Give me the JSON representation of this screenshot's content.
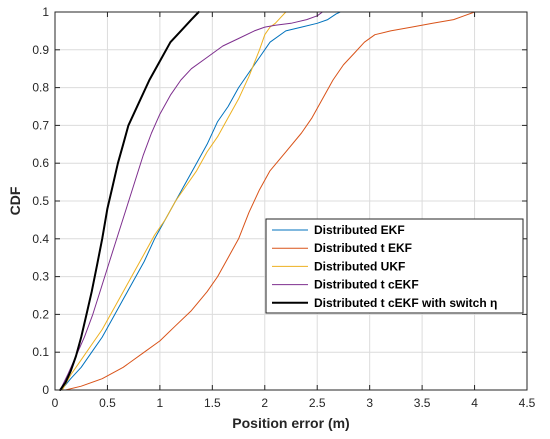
{
  "chart_data": {
    "type": "line",
    "xlabel": "Position error (m)",
    "ylabel": "CDF",
    "xlim": [
      0,
      4.5
    ],
    "ylim": [
      0,
      1
    ],
    "xticks": [
      0,
      0.5,
      1,
      1.5,
      2,
      2.5,
      3,
      3.5,
      4,
      4.5
    ],
    "xtick_labels": [
      "0",
      "0.5",
      "1",
      "1.5",
      "2",
      "2.5",
      "3",
      "3.5",
      "4",
      "4.5"
    ],
    "yticks": [
      0,
      0.1,
      0.2,
      0.3,
      0.4,
      0.5,
      0.6,
      0.7,
      0.8,
      0.9,
      1
    ],
    "ytick_labels": [
      "0",
      "0.1",
      "0.2",
      "0.3",
      "0.4",
      "0.5",
      "0.6",
      "0.7",
      "0.8",
      "0.9",
      "1"
    ],
    "grid": true,
    "legend_position": "bottom-right",
    "series": [
      {
        "name": "Distributed EKF",
        "color": "#0072BD",
        "width": 1,
        "x": [
          0.06,
          0.15,
          0.25,
          0.35,
          0.45,
          0.55,
          0.65,
          0.75,
          0.85,
          0.95,
          1.05,
          1.15,
          1.25,
          1.35,
          1.45,
          1.55,
          1.65,
          1.75,
          1.85,
          1.95,
          2.05,
          2.2,
          2.35,
          2.5,
          2.6,
          2.68,
          2.72
        ],
        "y": [
          0,
          0.03,
          0.06,
          0.1,
          0.14,
          0.19,
          0.24,
          0.29,
          0.34,
          0.4,
          0.45,
          0.5,
          0.55,
          0.6,
          0.65,
          0.71,
          0.75,
          0.8,
          0.84,
          0.88,
          0.92,
          0.95,
          0.96,
          0.97,
          0.98,
          0.995,
          1
        ]
      },
      {
        "name": "Distributed t EKF",
        "color": "#D95319",
        "width": 1,
        "x": [
          0.1,
          0.25,
          0.45,
          0.65,
          0.85,
          1.0,
          1.15,
          1.3,
          1.45,
          1.55,
          1.65,
          1.75,
          1.85,
          1.95,
          2.05,
          2.2,
          2.35,
          2.45,
          2.55,
          2.65,
          2.75,
          2.85,
          2.95,
          3.05,
          3.2,
          3.4,
          3.6,
          3.8,
          3.9,
          4.0
        ],
        "y": [
          0,
          0.01,
          0.03,
          0.06,
          0.1,
          0.13,
          0.17,
          0.21,
          0.26,
          0.3,
          0.35,
          0.4,
          0.47,
          0.53,
          0.58,
          0.63,
          0.68,
          0.72,
          0.77,
          0.82,
          0.86,
          0.89,
          0.92,
          0.94,
          0.95,
          0.96,
          0.97,
          0.98,
          0.99,
          1
        ]
      },
      {
        "name": "Distributed UKF",
        "color": "#EDB120",
        "width": 1,
        "x": [
          0.07,
          0.15,
          0.25,
          0.35,
          0.45,
          0.55,
          0.65,
          0.75,
          0.85,
          0.95,
          1.05,
          1.15,
          1.25,
          1.35,
          1.45,
          1.55,
          1.65,
          1.75,
          1.85,
          1.95,
          2.0,
          2.05,
          2.1,
          2.15,
          2.2
        ],
        "y": [
          0,
          0.04,
          0.08,
          0.12,
          0.16,
          0.21,
          0.26,
          0.31,
          0.36,
          0.41,
          0.45,
          0.5,
          0.54,
          0.58,
          0.63,
          0.67,
          0.72,
          0.77,
          0.83,
          0.9,
          0.94,
          0.96,
          0.97,
          0.985,
          1
        ]
      },
      {
        "name": "Distributed t cEKF",
        "color": "#7E2F8E",
        "width": 1,
        "x": [
          0.05,
          0.12,
          0.2,
          0.28,
          0.36,
          0.44,
          0.52,
          0.6,
          0.68,
          0.76,
          0.84,
          0.92,
          1.0,
          1.1,
          1.2,
          1.3,
          1.45,
          1.6,
          1.75,
          1.9,
          2.0,
          2.1,
          2.25,
          2.4,
          2.5,
          2.55
        ],
        "y": [
          0,
          0.04,
          0.09,
          0.14,
          0.2,
          0.27,
          0.34,
          0.41,
          0.48,
          0.55,
          0.62,
          0.68,
          0.73,
          0.78,
          0.82,
          0.85,
          0.88,
          0.91,
          0.93,
          0.95,
          0.96,
          0.965,
          0.97,
          0.98,
          0.99,
          1
        ]
      },
      {
        "name": "Distributed t cEKF with switch η",
        "color": "#000000",
        "width": 2,
        "x": [
          0.05,
          0.1,
          0.15,
          0.2,
          0.25,
          0.3,
          0.35,
          0.4,
          0.45,
          0.5,
          0.55,
          0.6,
          0.65,
          0.7,
          0.8,
          0.9,
          1.0,
          1.1,
          1.2,
          1.3,
          1.37
        ],
        "y": [
          0,
          0.02,
          0.05,
          0.09,
          0.14,
          0.2,
          0.26,
          0.33,
          0.4,
          0.48,
          0.54,
          0.6,
          0.65,
          0.7,
          0.76,
          0.82,
          0.87,
          0.92,
          0.95,
          0.98,
          1
        ]
      }
    ]
  }
}
